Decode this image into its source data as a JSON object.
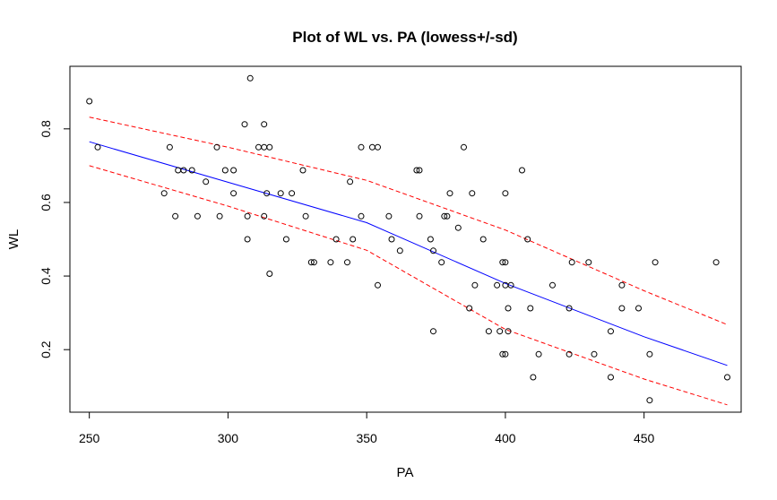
{
  "chart_data": {
    "type": "scatter",
    "title": "Plot of WL vs. PA   (lowess+/-sd)",
    "xlabel": "PA",
    "ylabel": "WL",
    "xlim": [
      243,
      485
    ],
    "ylim": [
      0.03,
      0.97
    ],
    "x_ticks": [
      "250",
      "300",
      "350",
      "400",
      "450"
    ],
    "y_ticks": [
      "0.2",
      "0.4",
      "0.6",
      "0.8"
    ],
    "grid": false,
    "colors": {
      "points": "#000000",
      "lowess": "#0000ff",
      "sd_band": "#ff0000"
    },
    "points": [
      [
        250,
        0.875
      ],
      [
        253,
        0.75
      ],
      [
        277,
        0.625
      ],
      [
        279,
        0.75
      ],
      [
        281,
        0.5625
      ],
      [
        282,
        0.6875
      ],
      [
        284,
        0.6875
      ],
      [
        287,
        0.6875
      ],
      [
        289,
        0.5625
      ],
      [
        292,
        0.65625
      ],
      [
        296,
        0.75
      ],
      [
        297,
        0.5625
      ],
      [
        299,
        0.6875
      ],
      [
        302,
        0.6875
      ],
      [
        302,
        0.625
      ],
      [
        306,
        0.8125
      ],
      [
        307,
        0.5
      ],
      [
        307,
        0.5625
      ],
      [
        308,
        0.9375
      ],
      [
        311,
        0.75
      ],
      [
        313,
        0.8125
      ],
      [
        313,
        0.75
      ],
      [
        313,
        0.5625
      ],
      [
        314,
        0.625
      ],
      [
        315,
        0.75
      ],
      [
        315,
        0.40625
      ],
      [
        319,
        0.625
      ],
      [
        321,
        0.5
      ],
      [
        323,
        0.625
      ],
      [
        327,
        0.6875
      ],
      [
        328,
        0.5625
      ],
      [
        330,
        0.4375
      ],
      [
        331,
        0.4375
      ],
      [
        337,
        0.4375
      ],
      [
        339,
        0.5
      ],
      [
        343,
        0.4375
      ],
      [
        344,
        0.65625
      ],
      [
        345,
        0.5
      ],
      [
        348,
        0.75
      ],
      [
        348,
        0.5625
      ],
      [
        352,
        0.75
      ],
      [
        354,
        0.75
      ],
      [
        354,
        0.375
      ],
      [
        358,
        0.5625
      ],
      [
        359,
        0.5
      ],
      [
        362,
        0.46875
      ],
      [
        368,
        0.6875
      ],
      [
        369,
        0.6875
      ],
      [
        369,
        0.5625
      ],
      [
        373,
        0.5
      ],
      [
        374,
        0.46875
      ],
      [
        374,
        0.25
      ],
      [
        377,
        0.4375
      ],
      [
        378,
        0.5625
      ],
      [
        379,
        0.5625
      ],
      [
        380,
        0.625
      ],
      [
        383,
        0.53125
      ],
      [
        385,
        0.75
      ],
      [
        387,
        0.3125
      ],
      [
        388,
        0.625
      ],
      [
        389,
        0.375
      ],
      [
        392,
        0.5
      ],
      [
        394,
        0.25
      ],
      [
        397,
        0.375
      ],
      [
        398,
        0.25
      ],
      [
        399,
        0.4375
      ],
      [
        399,
        0.1875
      ],
      [
        400,
        0.4375
      ],
      [
        400,
        0.1875
      ],
      [
        400,
        0.625
      ],
      [
        400,
        0.375
      ],
      [
        401,
        0.25
      ],
      [
        401,
        0.3125
      ],
      [
        402,
        0.375
      ],
      [
        406,
        0.6875
      ],
      [
        408,
        0.5
      ],
      [
        409,
        0.3125
      ],
      [
        410,
        0.125
      ],
      [
        412,
        0.1875
      ],
      [
        417,
        0.375
      ],
      [
        423,
        0.3125
      ],
      [
        423,
        0.1875
      ],
      [
        424,
        0.4375
      ],
      [
        430,
        0.4375
      ],
      [
        432,
        0.1875
      ],
      [
        438,
        0.25
      ],
      [
        438,
        0.125
      ],
      [
        442,
        0.375
      ],
      [
        442,
        0.3125
      ],
      [
        448,
        0.3125
      ],
      [
        452,
        0.1875
      ],
      [
        452,
        0.0625
      ],
      [
        454,
        0.4375
      ],
      [
        476,
        0.4375
      ],
      [
        480,
        0.125
      ]
    ],
    "lowess": [
      [
        250,
        0.765
      ],
      [
        300,
        0.655
      ],
      [
        350,
        0.545
      ],
      [
        400,
        0.38
      ],
      [
        450,
        0.235
      ],
      [
        480,
        0.157
      ]
    ],
    "upper_sd": [
      [
        250,
        0.832
      ],
      [
        300,
        0.75
      ],
      [
        350,
        0.66
      ],
      [
        400,
        0.525
      ],
      [
        450,
        0.36
      ],
      [
        480,
        0.268
      ]
    ],
    "lower_sd": [
      [
        250,
        0.7
      ],
      [
        300,
        0.59
      ],
      [
        350,
        0.47
      ],
      [
        400,
        0.255
      ],
      [
        450,
        0.12
      ],
      [
        480,
        0.05
      ]
    ]
  }
}
